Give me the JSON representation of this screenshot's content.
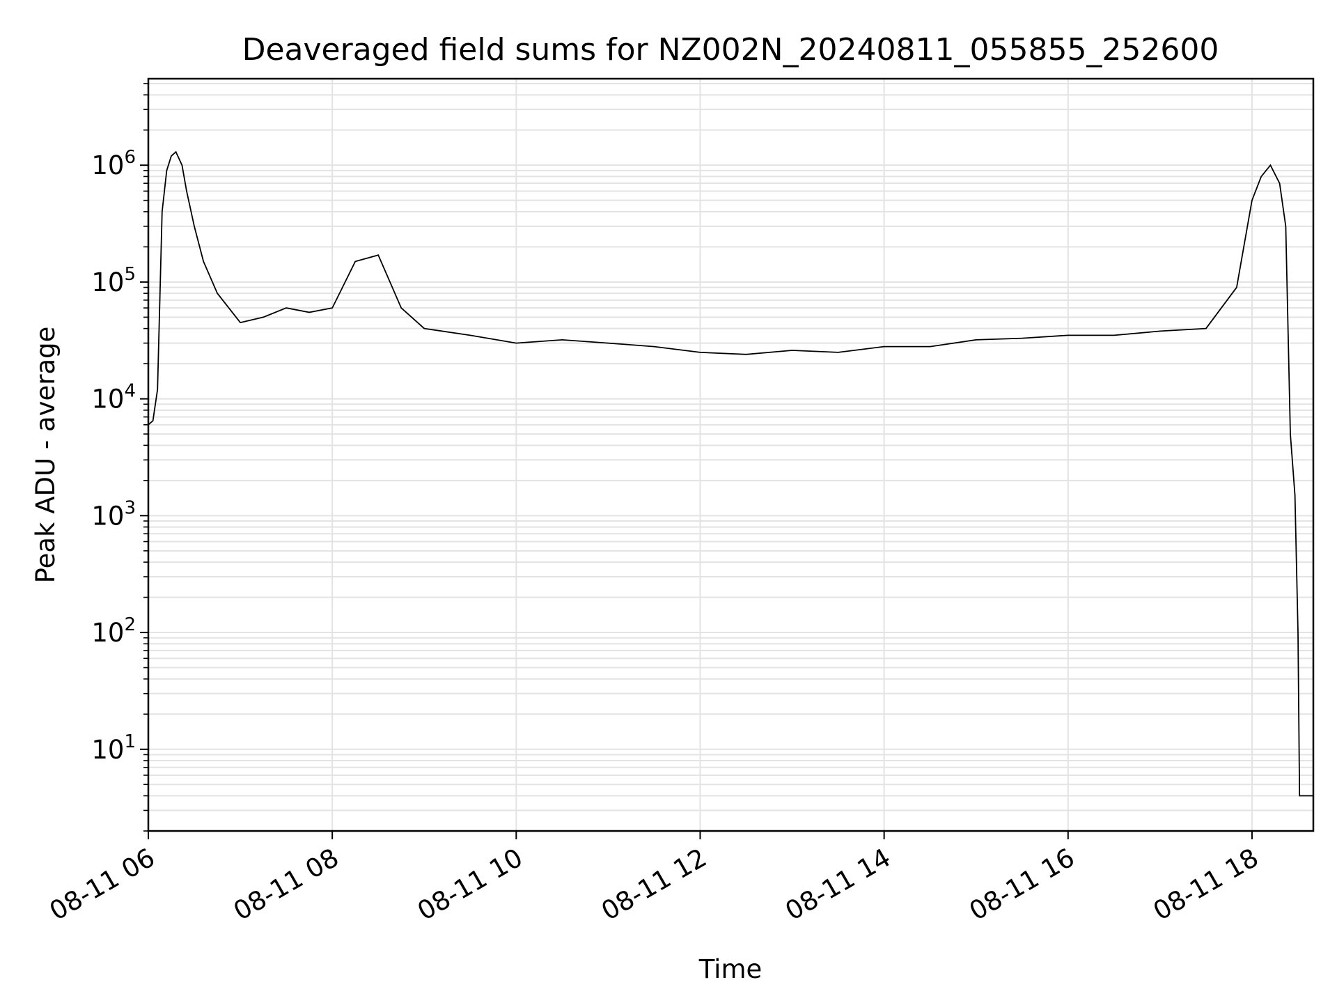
{
  "chart_data": {
    "type": "line",
    "title": "Deaveraged field sums for NZ002N_20240811_055855_252600",
    "xlabel": "Time",
    "ylabel": "Peak ADU - average",
    "yscale": "log",
    "ylim": [
      2.0,
      5500000
    ],
    "xlim": [
      "2024-08-11 06:00",
      "2024-08-11 18:40"
    ],
    "grid": true,
    "line_color": "#000000",
    "grid_color": "#e3e3e3",
    "x_ticks": [
      "08-11 06",
      "08-11 08",
      "08-11 10",
      "08-11 12",
      "08-11 14",
      "08-11 16",
      "08-11 18"
    ],
    "y_ticks": [
      {
        "value": 10,
        "base": "10",
        "exp": "1"
      },
      {
        "value": 100,
        "base": "10",
        "exp": "2"
      },
      {
        "value": 1000,
        "base": "10",
        "exp": "3"
      },
      {
        "value": 10000,
        "base": "10",
        "exp": "4"
      },
      {
        "value": 100000,
        "base": "10",
        "exp": "5"
      },
      {
        "value": 1000000,
        "base": "10",
        "exp": "6"
      }
    ],
    "x": [
      "2024-08-11 06:00",
      "2024-08-11 06:03",
      "2024-08-11 06:06",
      "2024-08-11 06:09",
      "2024-08-11 06:12",
      "2024-08-11 06:15",
      "2024-08-11 06:18",
      "2024-08-11 06:22",
      "2024-08-11 06:25",
      "2024-08-11 06:30",
      "2024-08-11 06:36",
      "2024-08-11 06:45",
      "2024-08-11 07:00",
      "2024-08-11 07:15",
      "2024-08-11 07:30",
      "2024-08-11 07:45",
      "2024-08-11 08:00",
      "2024-08-11 08:15",
      "2024-08-11 08:30",
      "2024-08-11 08:45",
      "2024-08-11 09:00",
      "2024-08-11 09:30",
      "2024-08-11 10:00",
      "2024-08-11 10:30",
      "2024-08-11 11:00",
      "2024-08-11 11:30",
      "2024-08-11 12:00",
      "2024-08-11 12:30",
      "2024-08-11 13:00",
      "2024-08-11 13:30",
      "2024-08-11 14:00",
      "2024-08-11 14:30",
      "2024-08-11 15:00",
      "2024-08-11 15:30",
      "2024-08-11 16:00",
      "2024-08-11 16:30",
      "2024-08-11 17:00",
      "2024-08-11 17:30",
      "2024-08-11 17:50",
      "2024-08-11 18:00",
      "2024-08-11 18:06",
      "2024-08-11 18:12",
      "2024-08-11 18:18",
      "2024-08-11 18:22",
      "2024-08-11 18:25",
      "2024-08-11 18:28",
      "2024-08-11 18:30",
      "2024-08-11 18:31",
      "2024-08-11 18:33",
      "2024-08-11 18:40"
    ],
    "series": [
      {
        "values": [
          6000,
          6500,
          12000,
          400000,
          900000,
          1200000,
          1300000,
          1000000,
          600000,
          300000,
          150000,
          80000,
          45000,
          50000,
          60000,
          55000,
          60000,
          150000,
          170000,
          60000,
          40000,
          35000,
          30000,
          32000,
          30000,
          28000,
          25000,
          24000,
          26000,
          25000,
          28000,
          28000,
          32000,
          33000,
          35000,
          35000,
          38000,
          40000,
          90000,
          500000,
          800000,
          1000000,
          700000,
          300000,
          5000,
          1500,
          100,
          4,
          4,
          4
        ]
      }
    ]
  }
}
